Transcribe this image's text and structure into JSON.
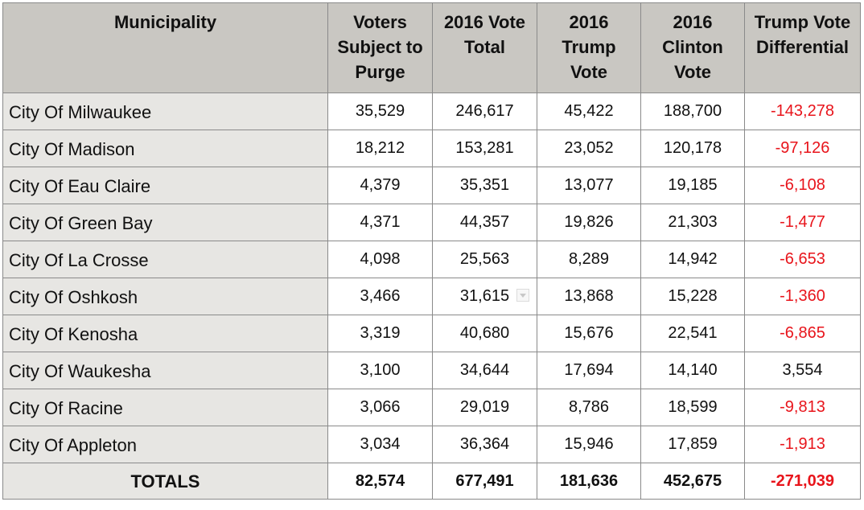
{
  "table": {
    "headers": [
      "Municipality",
      "Voters Subject to Purge",
      "2016 Vote Total",
      "2016 Trump Vote",
      "2016 Clinton Vote",
      "Trump Vote Differential"
    ],
    "header_lines": [
      [
        "Municipality"
      ],
      [
        "Voters",
        "Subject to",
        "Purge"
      ],
      [
        "2016 Vote",
        "Total"
      ],
      [
        "2016",
        "Trump",
        "Vote"
      ],
      [
        "2016",
        "Clinton",
        "Vote"
      ],
      [
        "Trump Vote",
        "Differential"
      ]
    ],
    "rows": [
      {
        "municipality": "City Of Milwaukee",
        "purge": "35,529",
        "total": "246,617",
        "trump": "45,422",
        "clinton": "188,700",
        "differential": "-143,278"
      },
      {
        "municipality": "City Of Madison",
        "purge": "18,212",
        "total": "153,281",
        "trump": "23,052",
        "clinton": "120,178",
        "differential": "-97,126"
      },
      {
        "municipality": "City Of Eau Claire",
        "purge": "4,379",
        "total": "35,351",
        "trump": "13,077",
        "clinton": "19,185",
        "differential": "-6,108"
      },
      {
        "municipality": "City Of Green Bay",
        "purge": "4,371",
        "total": "44,357",
        "trump": "19,826",
        "clinton": "21,303",
        "differential": "-1,477"
      },
      {
        "municipality": "City Of La Crosse",
        "purge": "4,098",
        "total": "25,563",
        "trump": "8,289",
        "clinton": "14,942",
        "differential": "-6,653"
      },
      {
        "municipality": "City Of Oshkosh",
        "purge": "3,466",
        "total": "31,615",
        "trump": "13,868",
        "clinton": "15,228",
        "differential": "-1,360"
      },
      {
        "municipality": "City Of Kenosha",
        "purge": "3,319",
        "total": "40,680",
        "trump": "15,676",
        "clinton": "22,541",
        "differential": "-6,865"
      },
      {
        "municipality": "City Of Waukesha",
        "purge": "3,100",
        "total": "34,644",
        "trump": "17,694",
        "clinton": "14,140",
        "differential": "3,554"
      },
      {
        "municipality": "City Of Racine",
        "purge": "3,066",
        "total": "29,019",
        "trump": "8,786",
        "clinton": "18,599",
        "differential": "-9,813"
      },
      {
        "municipality": "City Of Appleton",
        "purge": "3,034",
        "total": "36,364",
        "trump": "15,946",
        "clinton": "17,859",
        "differential": "-1,913"
      }
    ],
    "totals": {
      "label": "TOTALS",
      "purge": "82,574",
      "total": "677,491",
      "trump": "181,636",
      "clinton": "452,675",
      "differential": "-271,039"
    }
  },
  "colors": {
    "header_bg": "#c9c7c2",
    "name_col_bg": "#e7e6e3",
    "negative_text": "#e8141b",
    "border": "#8a8a8a"
  },
  "icons": {
    "cell_dropdown": "chevron-down-icon"
  }
}
